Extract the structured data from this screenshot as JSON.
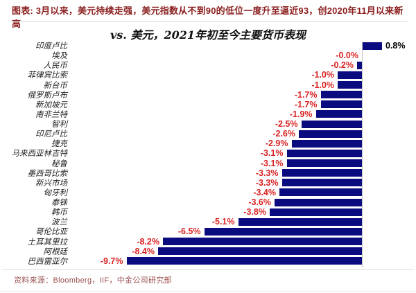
{
  "header": {
    "note": "图表: 3月以来，美元持续走强，美元指数从不到90的低位一度升至逼近93，创2020年11月以来新高"
  },
  "chart_data": {
    "type": "bar",
    "orientation": "horizontal",
    "title": "vs. 美元，2021年初至今主要货币表现",
    "categories": [
      "印度卢比",
      "埃及",
      "人民币",
      "菲律宾比索",
      "新台币",
      "俄罗斯卢布",
      "新加坡元",
      "南非兰特",
      "智利",
      "印尼卢比",
      "捷克",
      "马来西亚林吉特",
      "秘鲁",
      "墨西哥比索",
      "新兴市场",
      "匈牙利",
      "泰铢",
      "韩币",
      "波兰",
      "哥伦比亚",
      "土耳其里拉",
      "阿根廷",
      "巴西雷亚尔"
    ],
    "values": [
      0.8,
      -0.0,
      -0.2,
      -1.0,
      -1.0,
      -1.7,
      -1.7,
      -1.9,
      -2.5,
      -2.6,
      -2.9,
      -3.1,
      -3.1,
      -3.3,
      -3.3,
      -3.4,
      -3.6,
      -3.8,
      -5.1,
      -6.5,
      -8.2,
      -8.4,
      -9.7
    ],
    "value_labels": [
      "0.8%",
      "-0.0%",
      "-0.2%",
      "-1.0%",
      "-1.0%",
      "-1.7%",
      "-1.7%",
      "-1.9%",
      "-2.5%",
      "-2.6%",
      "-2.9%",
      "-3.1%",
      "-3.1%",
      "-3.3%",
      "-3.3%",
      "-3.4%",
      "-3.6%",
      "-3.8%",
      "-5.1%",
      "-6.5%",
      "-8.2%",
      "-8.4%",
      "-9.7%"
    ],
    "unit": "%",
    "xlim": [
      -10.5,
      2.2
    ],
    "grid": false,
    "legend": false,
    "bar_color": "#0b0b80",
    "axis_color": "#c4c4c4",
    "negative_label_color": "#d92323",
    "positive_label_color": "#000000"
  },
  "footer": {
    "source": "资料来源：Bloomberg，IIF，中金公司研究部"
  }
}
